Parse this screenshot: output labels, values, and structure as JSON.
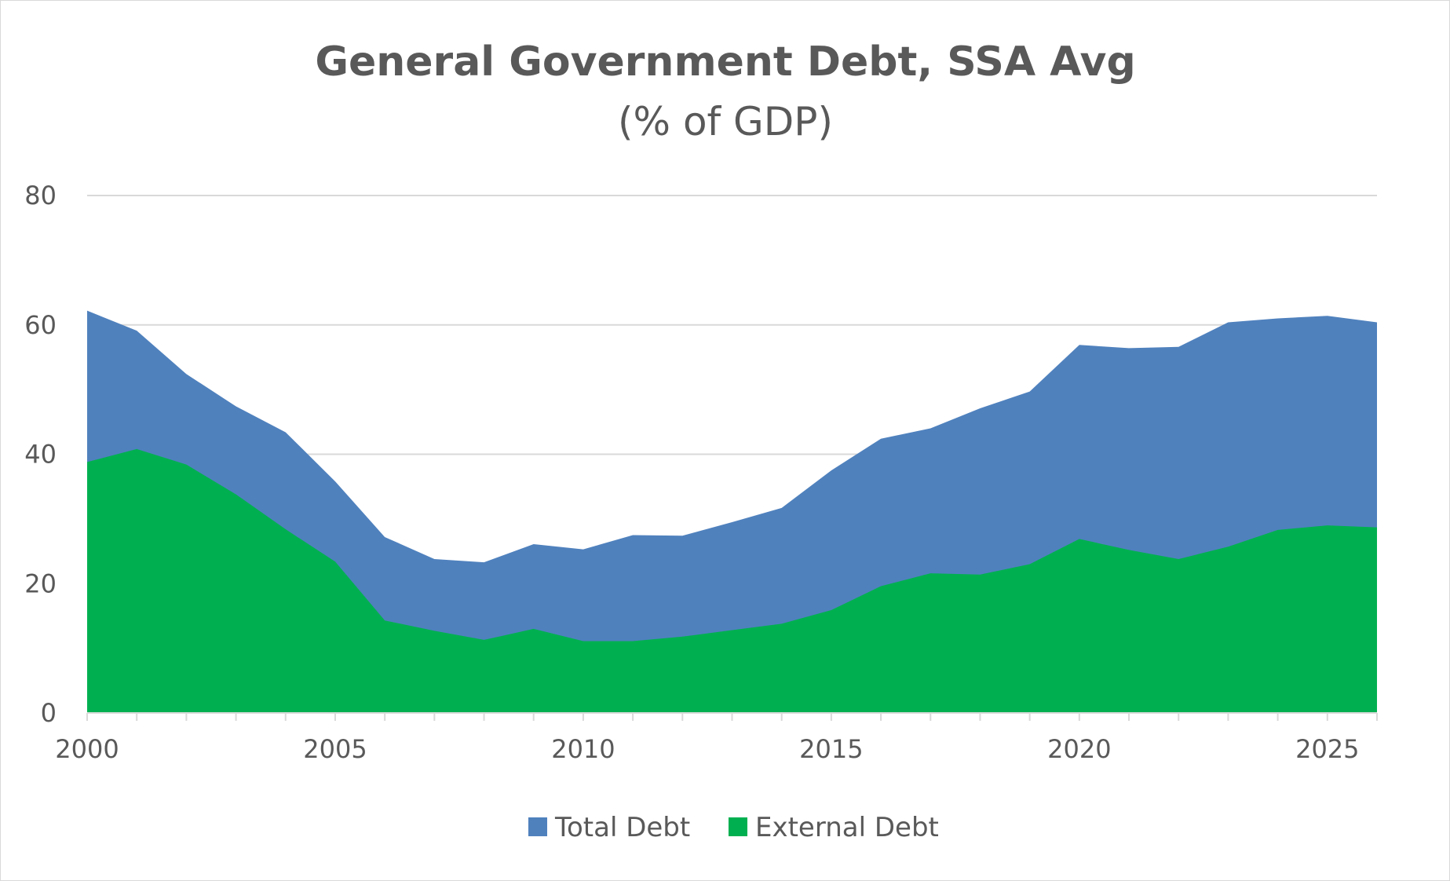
{
  "chart_data": {
    "type": "area",
    "title": "General Government Debt, SSA Avg",
    "subtitle": "(% of GDP)",
    "xlabel": "",
    "ylabel": "",
    "x": [
      2000,
      2001,
      2002,
      2003,
      2004,
      2005,
      2006,
      2007,
      2008,
      2009,
      2010,
      2011,
      2012,
      2013,
      2014,
      2015,
      2016,
      2017,
      2018,
      2019,
      2020,
      2021,
      2022,
      2023,
      2024,
      2025,
      2026
    ],
    "xlim": [
      2000,
      2026
    ],
    "ylim": [
      0,
      80
    ],
    "x_ticks": [
      "2000",
      "2005",
      "2010",
      "2015",
      "2020",
      "2025"
    ],
    "y_ticks": [
      "0",
      "20",
      "40",
      "60",
      "80"
    ],
    "grid": true,
    "legend_position": "bottom",
    "series": [
      {
        "name": "Total Debt",
        "color": "#4f81bd",
        "values": [
          62.2,
          59.1,
          52.4,
          47.4,
          43.4,
          35.8,
          27.2,
          23.8,
          23.3,
          26.1,
          25.3,
          27.5,
          27.4,
          29.5,
          31.7,
          37.5,
          42.4,
          44.0,
          47.1,
          49.7,
          56.9,
          56.4,
          56.6,
          60.4,
          61.0,
          61.4,
          60.4
        ]
      },
      {
        "name": "External Debt",
        "color": "#00b050",
        "values": [
          38.8,
          40.8,
          38.4,
          33.8,
          28.4,
          23.4,
          14.3,
          12.7,
          11.3,
          13.0,
          11.1,
          11.1,
          11.8,
          12.8,
          13.8,
          15.9,
          19.6,
          21.6,
          21.4,
          23.0,
          26.9,
          25.2,
          23.8,
          25.7,
          28.3,
          29.0,
          28.7
        ]
      }
    ]
  }
}
